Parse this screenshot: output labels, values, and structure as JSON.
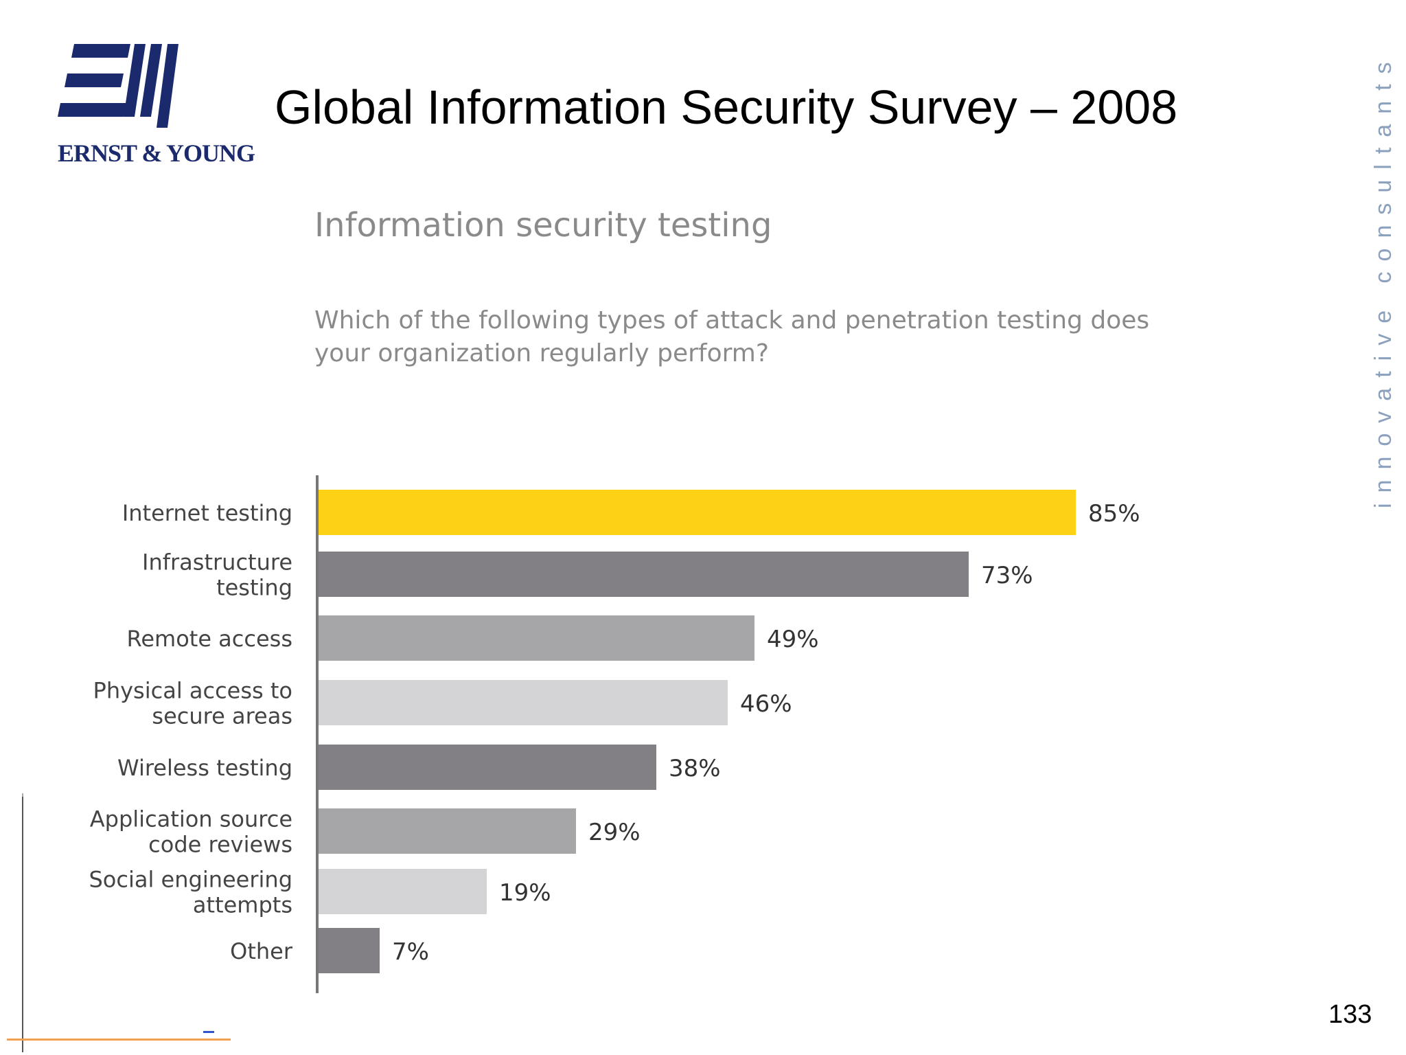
{
  "logo": {
    "text": "ERNST & YOUNG",
    "color": "#1a2a6c"
  },
  "header": {
    "title": "Global Information Security Survey – 2008"
  },
  "side_tag": "innovative consultants",
  "page_number": "133",
  "chart_data": {
    "type": "bar",
    "orientation": "horizontal",
    "title": "Information security testing",
    "subtitle": "Which of the following types of attack and penetration testing does your organization regularly perform?",
    "categories": [
      "Internet testing",
      "Infrastructure testing",
      "Remote access",
      "Physical access to secure areas",
      "Wireless testing",
      "Application source code reviews",
      "Social engineering attempts",
      "Other"
    ],
    "category_lines": [
      [
        "Internet testing"
      ],
      [
        "Infrastructure",
        "testing"
      ],
      [
        "Remote access"
      ],
      [
        "Physical access to",
        "secure areas"
      ],
      [
        "Wireless testing"
      ],
      [
        "Application source",
        "code reviews"
      ],
      [
        "Social engineering",
        "attempts"
      ],
      [
        "Other"
      ]
    ],
    "values": [
      85,
      73,
      49,
      46,
      38,
      29,
      19,
      7
    ],
    "value_labels": [
      "85%",
      "73%",
      "49%",
      "46%",
      "38%",
      "29%",
      "19%",
      "7%"
    ],
    "bar_colors": [
      "#fcd116",
      "#828085",
      "#a6a6a8",
      "#d4d4d6",
      "#828085",
      "#a6a6a8",
      "#d4d4d6",
      "#828085"
    ],
    "xlim": [
      0,
      100
    ],
    "grid": false,
    "legend": "none"
  }
}
